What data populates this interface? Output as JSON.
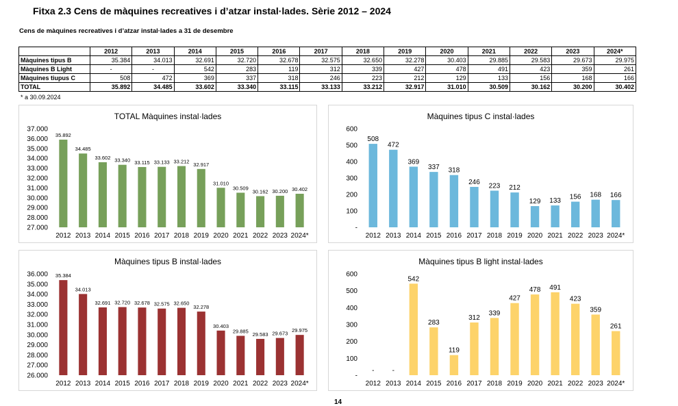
{
  "page": {
    "title": "Fitxa 2.3 Cens de màquines recreatives i d’atzar instal·lades. Sèrie 2012 – 2024",
    "subtitle": "Cens de màquines recreatives i d’atzar instal·lades a 31 de desembre",
    "footnote": "* a 30.09.2024",
    "page_number": "14"
  },
  "table": {
    "header": [
      "",
      "2012",
      "2013",
      "2014",
      "2015",
      "2016",
      "2017",
      "2018",
      "2019",
      "2020",
      "2021",
      "2022",
      "2023",
      "2024*"
    ],
    "rows": [
      {
        "label": "Màquines tipus B",
        "values": [
          "35.384",
          "34.013",
          "32.691",
          "32.720",
          "32.678",
          "32.575",
          "32.650",
          "32.278",
          "30.403",
          "29.885",
          "29.583",
          "29.673",
          "29.975"
        ]
      },
      {
        "label": "Màquines B Light",
        "values": [
          "-",
          "-",
          "542",
          "283",
          "119",
          "312",
          "339",
          "427",
          "478",
          "491",
          "423",
          "359",
          "261"
        ]
      },
      {
        "label": "Màquines tiupus C",
        "values": [
          "508",
          "472",
          "369",
          "337",
          "318",
          "246",
          "223",
          "212",
          "129",
          "133",
          "156",
          "168",
          "166"
        ]
      },
      {
        "label": "TOTAL",
        "values": [
          "35.892",
          "34.485",
          "33.602",
          "33.340",
          "33.115",
          "33.133",
          "33.212",
          "32.917",
          "31.010",
          "30.509",
          "30.162",
          "30.200",
          "30.402"
        ]
      }
    ]
  },
  "chart_data": [
    {
      "id": "total",
      "type": "bar",
      "title": "TOTAL Màquines instal·lades",
      "color": "#77a05a",
      "categories": [
        "2012",
        "2013",
        "2014",
        "2015",
        "2016",
        "2017",
        "2018",
        "2019",
        "2020",
        "2021",
        "2022",
        "2023",
        "2024*"
      ],
      "values": [
        35892,
        34485,
        33602,
        33340,
        33115,
        33133,
        33212,
        32917,
        31010,
        30509,
        30162,
        30200,
        30402
      ],
      "labels": [
        "35.892",
        "34.485",
        "33.602",
        "33.340",
        "33.115",
        "33.133",
        "33.212",
        "32.917",
        "31.010",
        "30.509",
        "30.162",
        "30.200",
        "30.402"
      ],
      "ylim": [
        27000,
        37000
      ],
      "yticks": [
        27000,
        28000,
        29000,
        30000,
        31000,
        32000,
        33000,
        34000,
        35000,
        36000,
        37000
      ],
      "ytick_labels": [
        "27.000",
        "28.000",
        "29.000",
        "30.000",
        "31.000",
        "32.000",
        "33.000",
        "34.000",
        "35.000",
        "36.000",
        "37.000"
      ]
    },
    {
      "id": "tipus-c",
      "type": "bar",
      "title": "Màquines tipus C instal·lades",
      "color": "#6cb8dc",
      "categories": [
        "2012",
        "2013",
        "2014",
        "2015",
        "2016",
        "2017",
        "2018",
        "2019",
        "2020",
        "2021",
        "2022",
        "2023",
        "2024*"
      ],
      "values": [
        508,
        472,
        369,
        337,
        318,
        246,
        223,
        212,
        129,
        133,
        156,
        168,
        166
      ],
      "labels": [
        "508",
        "472",
        "369",
        "337",
        "318",
        "246",
        "223",
        "212",
        "129",
        "133",
        "156",
        "168",
        "166"
      ],
      "ylim": [
        0,
        600
      ],
      "yticks": [
        0,
        100,
        200,
        300,
        400,
        500,
        600
      ],
      "ytick_labels": [
        "-",
        "100",
        "200",
        "300",
        "400",
        "500",
        "600"
      ]
    },
    {
      "id": "tipus-b",
      "type": "bar",
      "title": "Màquines tipus B instal·lades",
      "color": "#9b3232",
      "categories": [
        "2012",
        "2013",
        "2014",
        "2015",
        "2016",
        "2017",
        "2018",
        "2019",
        "2020",
        "2021",
        "2022",
        "2023",
        "2024*"
      ],
      "values": [
        35384,
        34013,
        32691,
        32720,
        32678,
        32575,
        32650,
        32278,
        30403,
        29885,
        29583,
        29673,
        29975
      ],
      "labels": [
        "35.384",
        "34.013",
        "32.691",
        "32.720",
        "32.678",
        "32.575",
        "32.650",
        "32.278",
        "30.403",
        "29.885",
        "29.583",
        "29.673",
        "29.975"
      ],
      "ylim": [
        26000,
        36000
      ],
      "yticks": [
        26000,
        27000,
        28000,
        29000,
        30000,
        31000,
        32000,
        33000,
        34000,
        35000,
        36000
      ],
      "ytick_labels": [
        "26.000",
        "27.000",
        "28.000",
        "29.000",
        "30.000",
        "31.000",
        "32.000",
        "33.000",
        "34.000",
        "35.000",
        "36.000"
      ]
    },
    {
      "id": "tipus-b-light",
      "type": "bar",
      "title": "Màquines tipus B light instal·lades",
      "color": "#fdd36a",
      "categories": [
        "2012",
        "2013",
        "2014",
        "2015",
        "2016",
        "2017",
        "2018",
        "2019",
        "2020",
        "2021",
        "2022",
        "2023",
        "2024*"
      ],
      "values": [
        0,
        0,
        542,
        283,
        119,
        312,
        339,
        427,
        478,
        491,
        423,
        359,
        261
      ],
      "labels": [
        "-",
        "-",
        "542",
        "283",
        "119",
        "312",
        "339",
        "427",
        "478",
        "491",
        "423",
        "359",
        "261"
      ],
      "ylim": [
        0,
        600
      ],
      "yticks": [
        0,
        100,
        200,
        300,
        400,
        500,
        600
      ],
      "ytick_labels": [
        "-",
        "100",
        "200",
        "300",
        "400",
        "500",
        "600"
      ]
    }
  ]
}
